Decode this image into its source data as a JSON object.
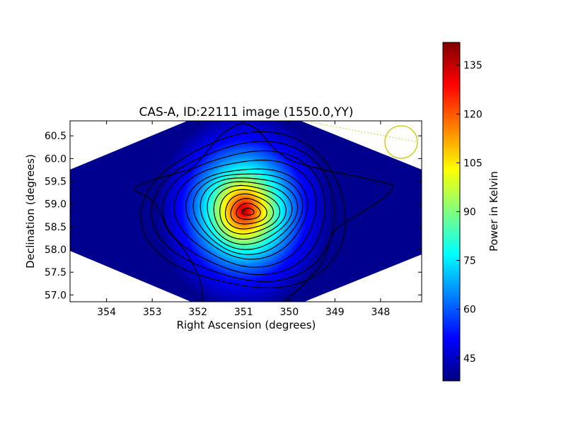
{
  "chart_data": {
    "type": "heatmap",
    "title": "CAS-A, ID:22111 image (1550.0,YY)",
    "xlabel": "Right Ascension (degrees)",
    "ylabel": "Declination (degrees)",
    "x_inverted": true,
    "xlim": [
      354.8,
      347.1
    ],
    "ylim": [
      56.85,
      60.83
    ],
    "x_ticks": [
      354,
      353,
      352,
      351,
      350,
      349,
      348
    ],
    "y_ticks": [
      57.0,
      57.5,
      58.0,
      58.5,
      59.0,
      59.5,
      60.0,
      60.5
    ],
    "x_tick_labels": [
      "354",
      "353",
      "352",
      "351",
      "350",
      "349",
      "348"
    ],
    "y_tick_labels": [
      "57.0",
      "57.5",
      "58.0",
      "58.5",
      "59.0",
      "59.5",
      "60.0",
      "60.5"
    ],
    "colormap": "jet",
    "colorbar": {
      "label": "Power in Kelvin",
      "range": [
        38,
        142
      ],
      "ticks": [
        45,
        60,
        75,
        90,
        105,
        120,
        135
      ],
      "tick_labels": [
        "45",
        "60",
        "75",
        "90",
        "105",
        "120",
        "135"
      ]
    },
    "source_peak": {
      "ra": 350.9,
      "dec": 58.83,
      "value": 141
    },
    "background_level": 40,
    "contours": {
      "count": 14,
      "color": "#000000"
    },
    "beam_marker": {
      "ra": 347.5,
      "dec": 60.37,
      "color": "#c8c800"
    }
  }
}
